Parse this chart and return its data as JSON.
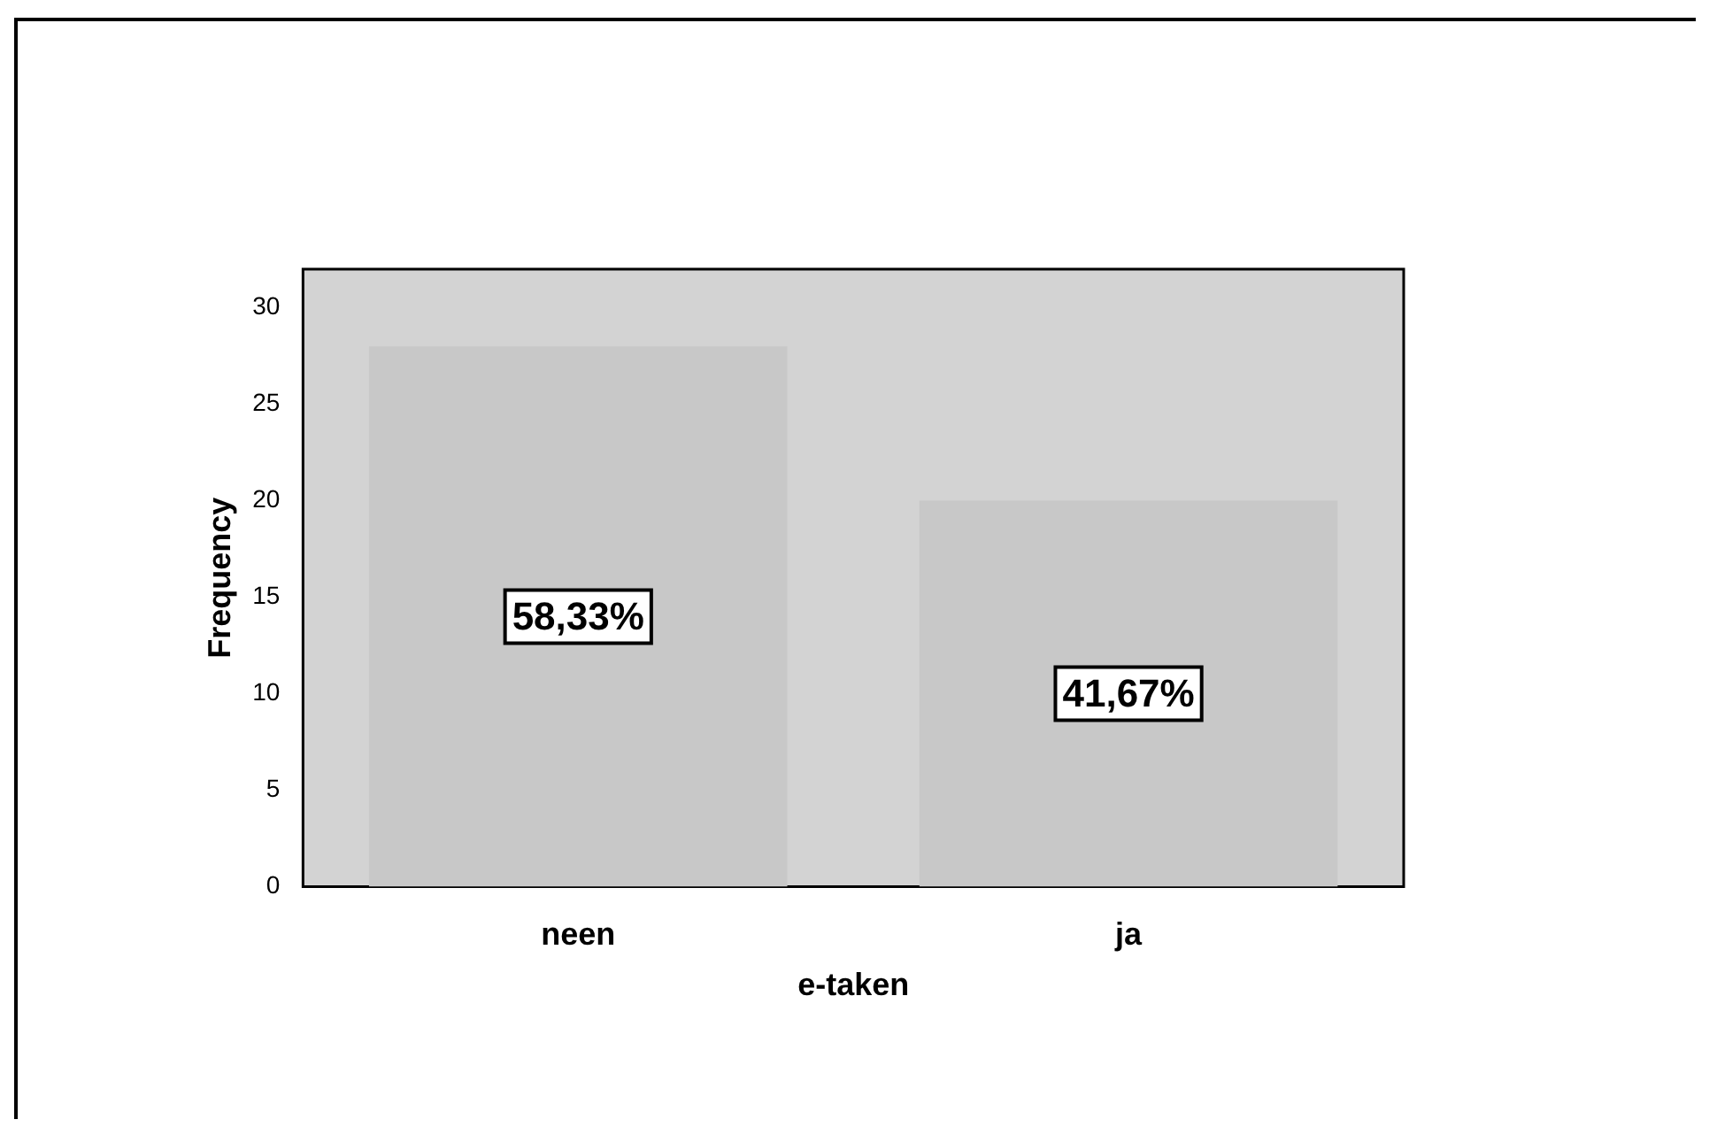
{
  "chart_data": {
    "type": "bar",
    "xlabel": "e-taken",
    "ylabel": "Frequency",
    "categories": [
      "neen",
      "ja"
    ],
    "values": [
      28,
      20
    ],
    "color": "#c8c8c8",
    "annotations": [
      "58,33%",
      "41,67%"
    ],
    "ylim": [
      0,
      32
    ],
    "yticks": [
      0,
      5,
      10,
      15,
      20,
      25,
      30
    ],
    "grid": false,
    "legend": false
  }
}
